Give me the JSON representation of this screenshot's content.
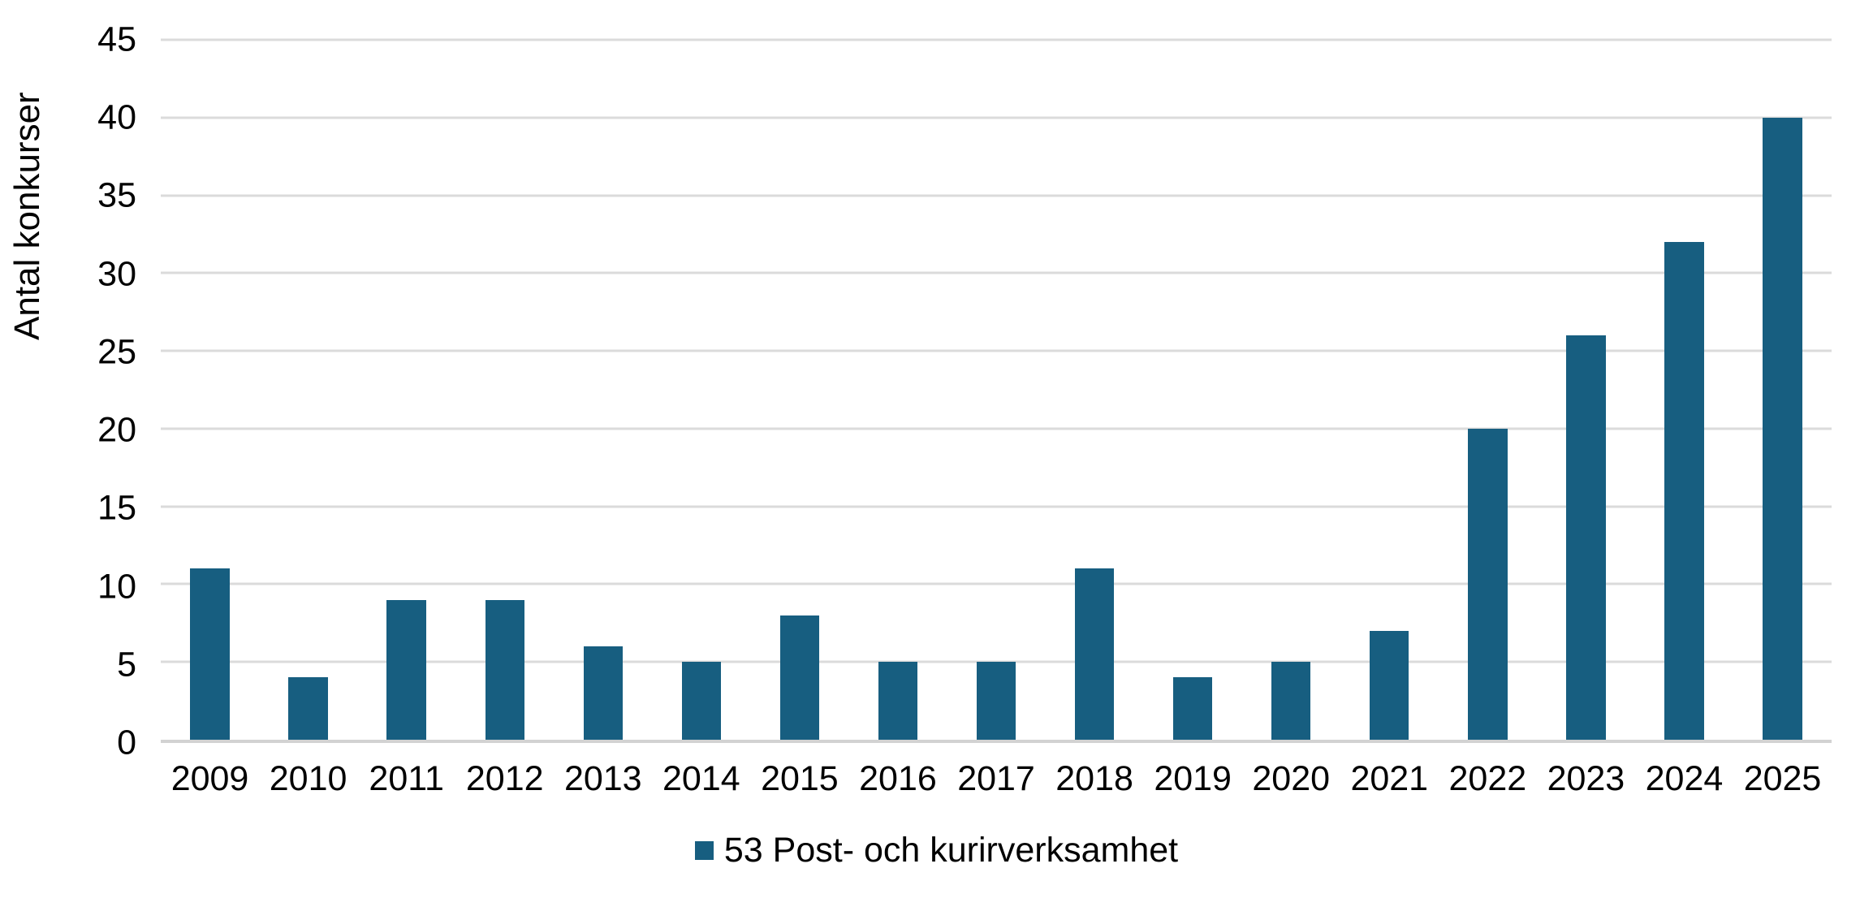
{
  "chart_data": {
    "type": "bar",
    "categories": [
      "2009",
      "2010",
      "2011",
      "2012",
      "2013",
      "2014",
      "2015",
      "2016",
      "2017",
      "2018",
      "2019",
      "2020",
      "2021",
      "2022",
      "2023",
      "2024",
      "2025"
    ],
    "values": [
      11,
      4,
      9,
      9,
      6,
      5,
      8,
      5,
      5,
      11,
      4,
      5,
      7,
      20,
      26,
      32,
      40
    ],
    "title": "",
    "xlabel": "",
    "ylabel": "Antal konkurser",
    "ylim": [
      0,
      45
    ],
    "ytick_step": 5,
    "grid": true,
    "legend": {
      "position": "bottom",
      "entries": [
        {
          "label": "53 Post- och kurirverksamhet",
          "color": "#175E80"
        }
      ]
    },
    "colors": {
      "bar": "#175E80",
      "gridline": "#DBDBDB",
      "axis_line": "#D2D2D2",
      "text": "#000000",
      "background": "#FFFFFF"
    }
  }
}
